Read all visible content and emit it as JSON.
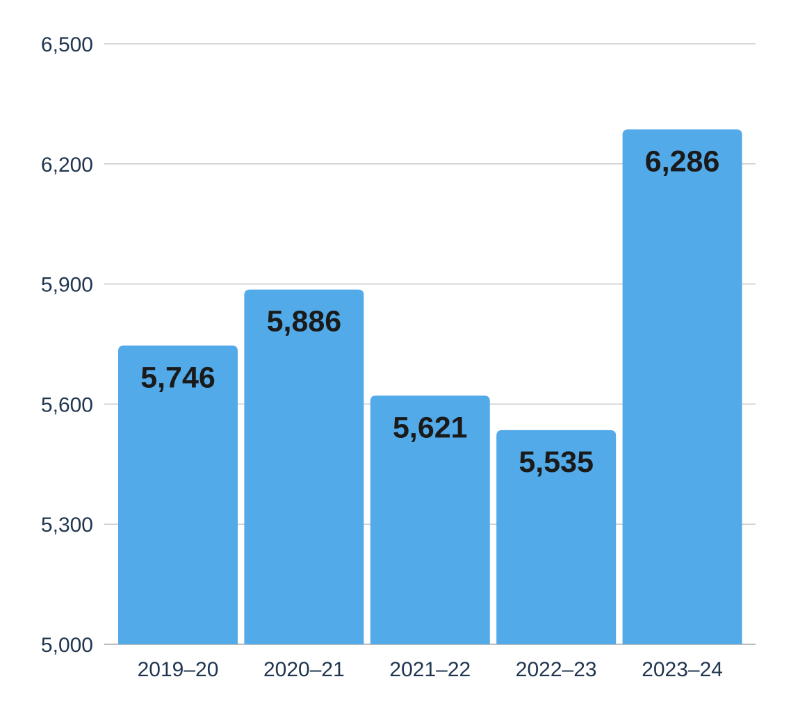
{
  "chart_data": {
    "type": "bar",
    "title": "",
    "xlabel": "",
    "ylabel": "",
    "categories": [
      "2019–20",
      "2020–21",
      "2021–22",
      "2022–23",
      "2023–24"
    ],
    "values": [
      5746,
      5886,
      5621,
      5535,
      6286
    ],
    "value_labels": [
      "5,746",
      "5,886",
      "5,621",
      "5,535",
      "6,286"
    ],
    "ylim": [
      5000,
      6500
    ],
    "y_ticks": [
      5000,
      5300,
      5600,
      5900,
      6200,
      6500
    ],
    "y_tick_labels": [
      "5,000",
      "5,300",
      "5,600",
      "5,900",
      "6,200",
      "6,500"
    ],
    "grid": true,
    "legend": "none",
    "bar_color": "#53aae8"
  }
}
